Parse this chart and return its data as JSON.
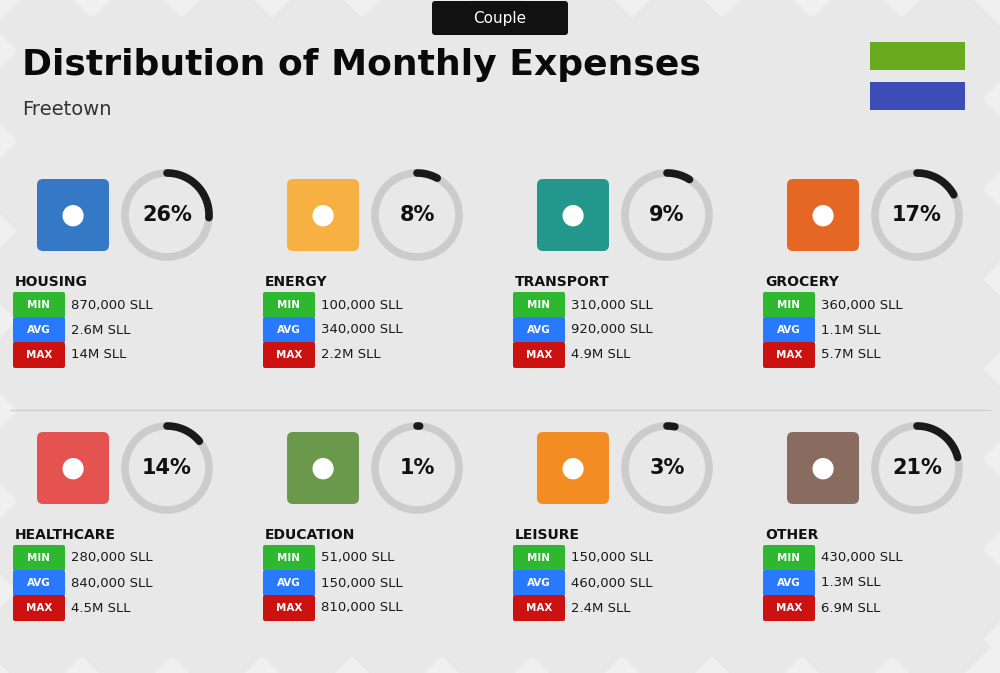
{
  "title": "Distribution of Monthly Expenses",
  "subtitle": "Freetown",
  "badge": "Couple",
  "bg_color": "#f0f0f0",
  "legend_colors": [
    "#6aaa1e",
    "#3d4db7"
  ],
  "categories": [
    {
      "name": "HOUSING",
      "pct": 26,
      "min": "870,000 SLL",
      "avg": "2.6M SLL",
      "max": "14M SLL",
      "icon_color": "#1565c0"
    },
    {
      "name": "ENERGY",
      "pct": 8,
      "min": "100,000 SLL",
      "avg": "340,000 SLL",
      "max": "2.2M SLL",
      "icon_color": "#f9a825"
    },
    {
      "name": "TRANSPORT",
      "pct": 9,
      "min": "310,000 SLL",
      "avg": "920,000 SLL",
      "max": "4.9M SLL",
      "icon_color": "#00897b"
    },
    {
      "name": "GROCERY",
      "pct": 17,
      "min": "360,000 SLL",
      "avg": "1.1M SLL",
      "max": "5.7M SLL",
      "icon_color": "#e65100"
    },
    {
      "name": "HEALTHCARE",
      "pct": 14,
      "min": "280,000 SLL",
      "avg": "840,000 SLL",
      "max": "4.5M SLL",
      "icon_color": "#e53935"
    },
    {
      "name": "EDUCATION",
      "pct": 1,
      "min": "51,000 SLL",
      "avg": "150,000 SLL",
      "max": "810,000 SLL",
      "icon_color": "#558b2f"
    },
    {
      "name": "LEISURE",
      "pct": 3,
      "min": "150,000 SLL",
      "avg": "460,000 SLL",
      "max": "2.4M SLL",
      "icon_color": "#f57c00"
    },
    {
      "name": "OTHER",
      "pct": 21,
      "min": "430,000 SLL",
      "avg": "1.3M SLL",
      "max": "6.9M SLL",
      "icon_color": "#795548"
    }
  ],
  "min_color": "#2db830",
  "avg_color": "#2979ff",
  "max_color": "#cc1111",
  "arc_filled": "#1a1a1a",
  "arc_empty": "#cccccc",
  "stripe_color": "#e8e8e8",
  "divider_color": "#d0d0d0",
  "fig_w": 10.0,
  "fig_h": 6.73,
  "dpi": 100
}
